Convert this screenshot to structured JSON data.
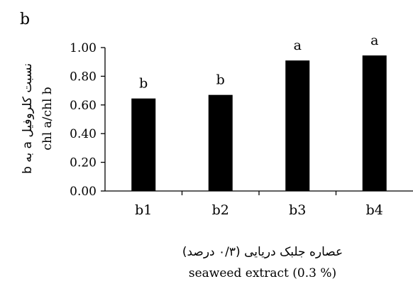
{
  "chart_data": {
    "type": "bar",
    "panel_label": "b",
    "categories": [
      "b1",
      "b2",
      "b3",
      "b4"
    ],
    "values": [
      0.645,
      0.67,
      0.91,
      0.945
    ],
    "bar_labels": [
      "b",
      "b",
      "a",
      "a"
    ],
    "yticks": [
      "0.00",
      "0.20",
      "0.40",
      "0.60",
      "0.80",
      "1.00"
    ],
    "ylim": [
      0,
      1
    ],
    "ylabel_fa": "نسبت کلروفیل a به b",
    "ylabel_en": "chl a/chl b",
    "xlabel_fa": "عصاره جلبک دریایی (۰/۳ درصد)",
    "xlabel_en": "seaweed extract  (0.3 %)",
    "grid": false,
    "legend": "none",
    "bar_color": "#000000"
  }
}
